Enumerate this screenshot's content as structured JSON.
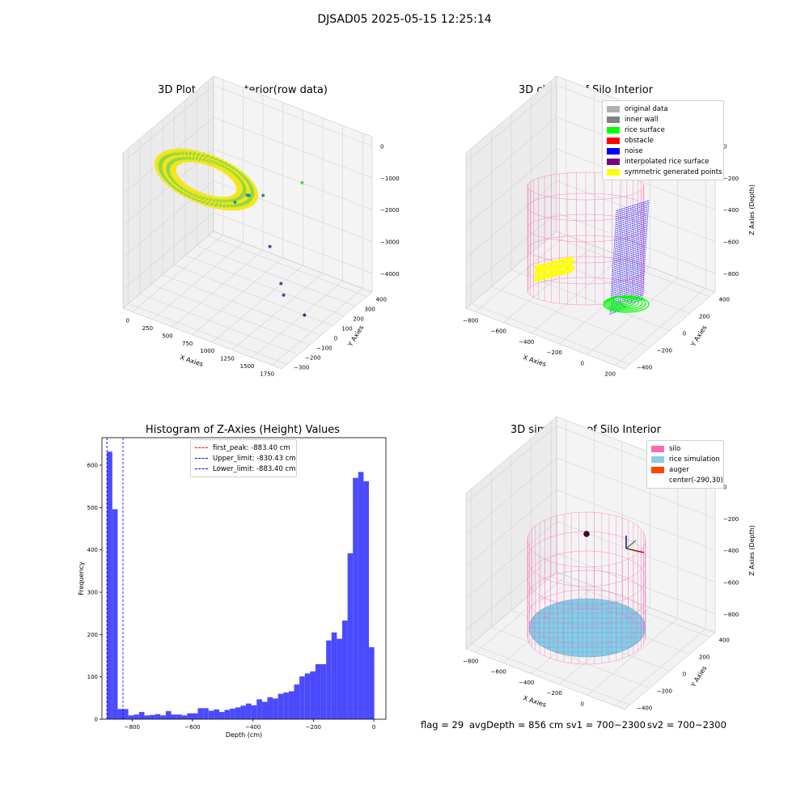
{
  "figure_title": "DJSAD05 2025-05-15 12:25:14",
  "colors": {
    "yellow": "#f5e51b",
    "green_yellow": "#8fd744",
    "green": "#5ec962",
    "teal": "#35b779",
    "blue_teal": "#21918c",
    "deep_blue": "#3b528b",
    "purple": "#472d7b",
    "silo_pink": "#ff69b4",
    "rice_blue": "#87ceeb",
    "hist_blue": "#4a4aff",
    "noise_blue": "#0000ff",
    "surface_green": "#00ff00"
  },
  "chart_data": [
    {
      "type": "scatter",
      "projection": "3d",
      "title": "3D Plot of Silo Interior(row data)",
      "xlabel": "X Axies",
      "ylabel": "Y Axies",
      "zlabel": "Z Axies (Depth)",
      "x_ticks": [
        "0",
        "250",
        "500",
        "750",
        "1000",
        "1250",
        "1500",
        "1750"
      ],
      "y_ticks": [
        "−300",
        "−200",
        "−100",
        "0",
        "100",
        "200",
        "300",
        "400"
      ],
      "z_ticks": [
        "0",
        "−1000",
        "−2000",
        "−3000",
        "−4000"
      ],
      "xlim": [
        -100,
        1800
      ],
      "ylim": [
        -350,
        450
      ],
      "zlim": [
        -4500,
        0
      ],
      "grid": true,
      "series": [
        {
          "color": "#3b528b",
          "points": [
            [
              1050,
              100,
              -2900
            ],
            [
              1250,
              50,
              -3650
            ],
            [
              1350,
              0,
              -3750
            ]
          ]
        },
        {
          "color": "#472d7b",
          "points": [
            [
              1600,
              0,
              -4100
            ]
          ]
        },
        {
          "color": "#21918c",
          "points": [
            [
              700,
              50,
              -1800
            ],
            [
              800,
              100,
              -1650
            ],
            [
              900,
              150,
              -1700
            ],
            [
              750,
              120,
              -1750
            ]
          ]
        },
        {
          "color": "#5ec962",
          "points": [
            [
              1300,
              200,
              -1100
            ]
          ]
        }
      ]
    },
    {
      "type": "scatter",
      "projection": "3d",
      "title": "3D classify of Silo Interior",
      "xlabel": "X Axies",
      "ylabel": "Y Axies",
      "zlabel": "Z Axies (Depth)",
      "x_ticks": [
        "−800",
        "−600",
        "−400",
        "−200",
        "0",
        "200"
      ],
      "y_ticks": [
        "−400",
        "−200",
        "0",
        "200",
        "400"
      ],
      "z_ticks": [
        "0",
        "−200",
        "−400",
        "−600",
        "−800"
      ],
      "xlim": [
        -800,
        250
      ],
      "ylim": [
        -450,
        450
      ],
      "zlim": [
        -900,
        0
      ],
      "grid": true,
      "legend_position": "top-right",
      "legend": [
        {
          "label": "original data",
          "color": "#b0b0b0"
        },
        {
          "label": "inner wall",
          "color": "#808080"
        },
        {
          "label": "rice surface",
          "color": "#00ff00"
        },
        {
          "label": "obstacle",
          "color": "#ff0000"
        },
        {
          "label": "noise",
          "color": "#0000ff"
        },
        {
          "label": "interpolated rice surface",
          "color": "#800080"
        },
        {
          "label": "symmetric generated points",
          "color": "#ffff00"
        }
      ]
    },
    {
      "type": "bar",
      "subtype": "histogram",
      "title": "Histogram of Z-Axies (Height) Values",
      "xlabel": "Depth (cm)",
      "ylabel": "Frequency",
      "xlim": [
        -900,
        40
      ],
      "ylim": [
        0,
        665
      ],
      "x_ticks": [
        -800,
        -600,
        -400,
        -200,
        0
      ],
      "y_ticks": [
        0,
        100,
        200,
        300,
        400,
        500,
        600
      ],
      "grid": false,
      "legend_position": "top-center",
      "bin_start": -883.4,
      "bin_width": 17.7,
      "values": [
        632,
        496,
        24,
        24,
        9,
        11,
        17,
        9,
        10,
        12,
        9,
        19,
        11,
        11,
        9,
        14,
        14,
        26,
        26,
        20,
        23,
        17,
        22,
        25,
        28,
        32,
        37,
        33,
        47,
        41,
        52,
        49,
        60,
        63,
        66,
        82,
        101,
        108,
        113,
        130,
        130,
        186,
        205,
        190,
        233,
        392,
        570,
        584,
        562,
        170
      ],
      "vlines": [
        {
          "label": "first_peak: -883.40 cm",
          "x": -883.4,
          "color": "#ff0000"
        },
        {
          "label": "Upper_limit: -830.43 cm",
          "x": -830.43,
          "color": "#0000ff"
        },
        {
          "label": "Lower_limit: -883.40 cm",
          "x": -883.4,
          "color": "#0000ff"
        }
      ]
    },
    {
      "type": "scatter",
      "projection": "3d",
      "title": "3D simulation of Silo Interior",
      "xlabel": "X Axies",
      "ylabel": "Y Axies",
      "zlabel": "Z Axies (Depth)",
      "x_ticks": [
        "−800",
        "−600",
        "−400",
        "−200",
        "0",
        "200"
      ],
      "y_ticks": [
        "−400",
        "−200",
        "0",
        "200",
        "400"
      ],
      "z_ticks": [
        "0",
        "−200",
        "−400",
        "−600",
        "−800"
      ],
      "xlim": [
        -800,
        250
      ],
      "ylim": [
        -450,
        450
      ],
      "zlim": [
        -900,
        100
      ],
      "grid": true,
      "legend_position": "top-right",
      "legend": [
        {
          "label": "silo",
          "color": "#ff69b4"
        },
        {
          "label": "rice simulation",
          "color": "#87ceeb"
        },
        {
          "label": "auger",
          "color": "#ff4500"
        },
        {
          "label": "center(-290,30)",
          "color": ""
        }
      ]
    }
  ],
  "status": {
    "flag": "flag = 29",
    "avg_depth": "avgDepth = 856 cm",
    "sv1": "sv1 = 700~2300",
    "sv2": "sv2 = 700~2300"
  }
}
